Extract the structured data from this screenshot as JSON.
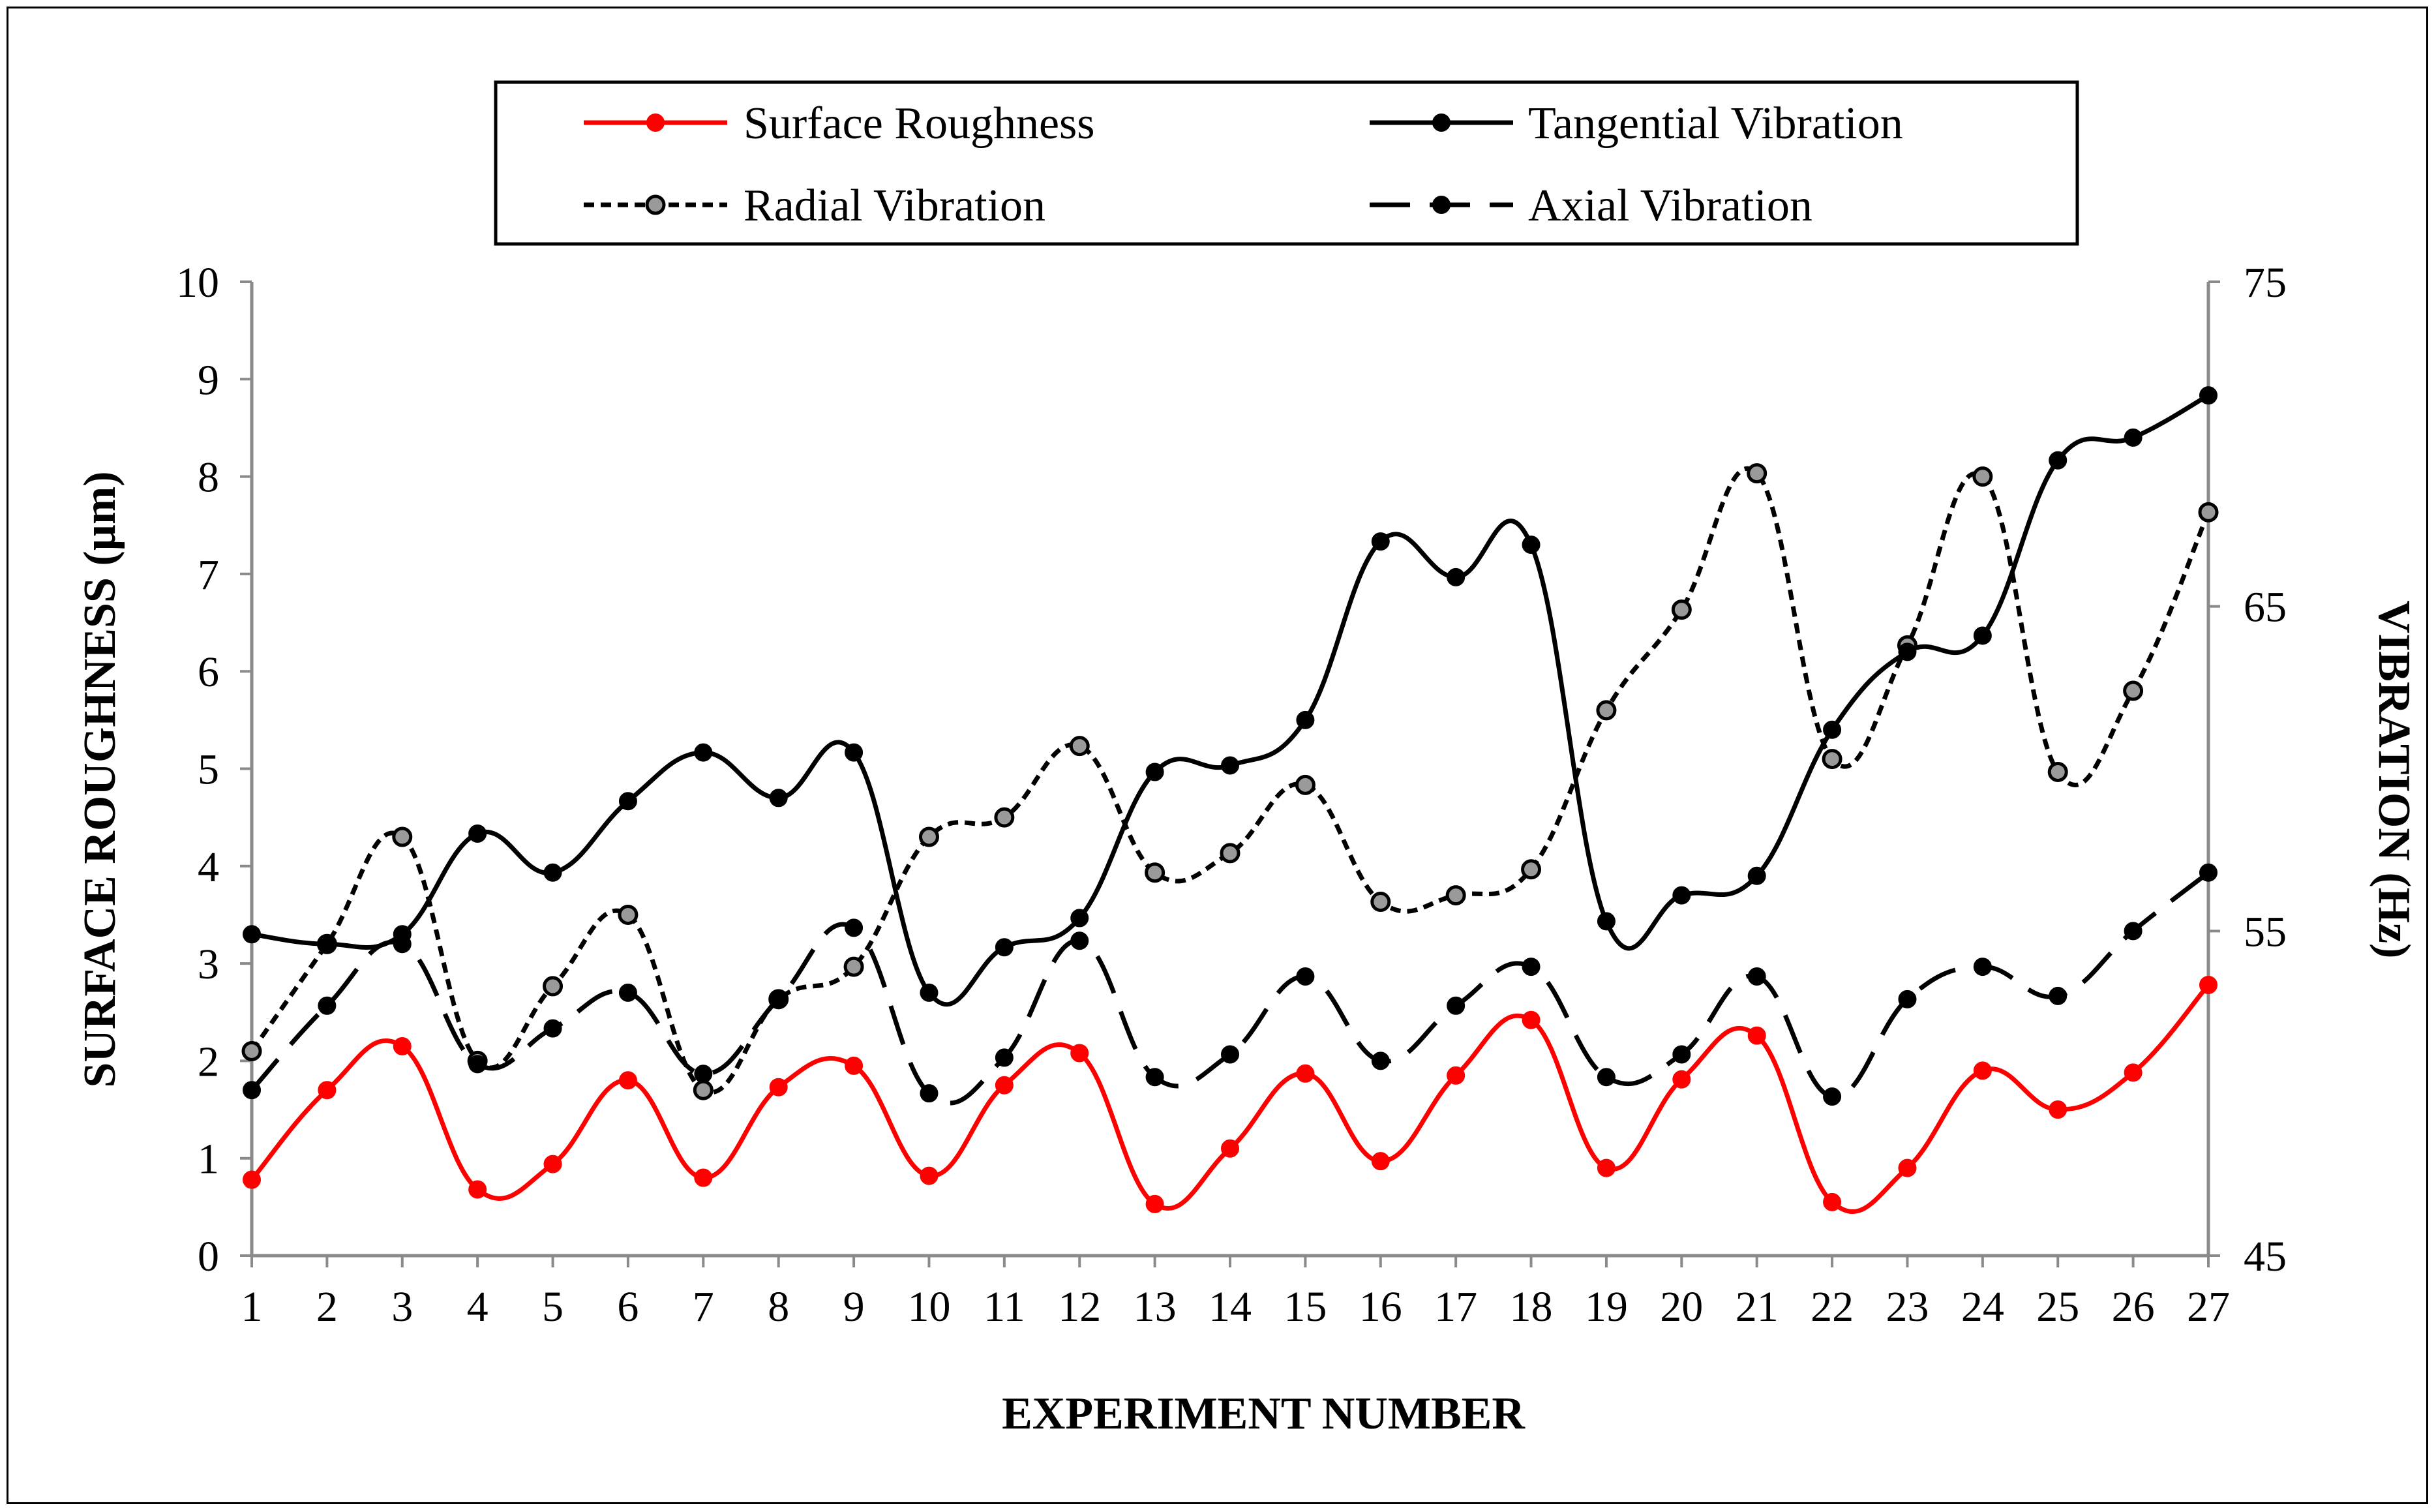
{
  "chart_data": {
    "type": "line",
    "title": "",
    "xlabel": "EXPERIMENT NUMBER",
    "ylabel": "SURFACE ROUGHNESS (µm)",
    "y2label": "VIBRATION (Hz)",
    "x": [
      1,
      2,
      3,
      4,
      5,
      6,
      7,
      8,
      9,
      10,
      11,
      12,
      13,
      14,
      15,
      16,
      17,
      18,
      19,
      20,
      21,
      22,
      23,
      24,
      25,
      26,
      27
    ],
    "xlim": [
      1,
      27
    ],
    "ylim": [
      0,
      10
    ],
    "y2lim": [
      45,
      75
    ],
    "yticks": [
      0,
      1,
      2,
      3,
      4,
      5,
      6,
      7,
      8,
      9,
      10
    ],
    "y2ticks": [
      45,
      55,
      65,
      75
    ],
    "legend_position": "top-center",
    "grid": false,
    "series": [
      {
        "name": "Surface Roughness",
        "axis": "left",
        "style": "solid",
        "color": "#ff0000",
        "marker_fill": "#ff0000",
        "values": [
          0.78,
          1.7,
          2.15,
          0.68,
          0.94,
          1.8,
          0.8,
          1.73,
          1.95,
          0.82,
          1.75,
          2.08,
          0.53,
          1.1,
          1.87,
          0.97,
          1.85,
          2.42,
          0.9,
          1.81,
          2.26,
          0.55,
          0.9,
          1.9,
          1.5,
          1.88,
          2.78
        ]
      },
      {
        "name": "Tangential Vibration",
        "axis": "right",
        "style": "solid",
        "color": "#000000",
        "marker_fill": "#000000",
        "values": [
          54.9,
          54.6,
          54.9,
          58.0,
          56.8,
          59.0,
          60.5,
          59.1,
          60.5,
          53.1,
          54.5,
          55.4,
          59.9,
          60.1,
          61.5,
          67.0,
          65.9,
          66.9,
          55.3,
          56.1,
          56.7,
          61.2,
          63.6,
          64.1,
          69.5,
          70.2,
          71.5
        ]
      },
      {
        "name": "Radial Vibration",
        "axis": "right",
        "style": "dotted",
        "color": "#000000",
        "marker_fill": "#9a9a9a",
        "values": [
          51.3,
          54.6,
          57.9,
          51.0,
          53.3,
          55.5,
          50.1,
          52.9,
          53.9,
          57.9,
          58.5,
          60.7,
          56.8,
          57.4,
          59.5,
          55.9,
          56.1,
          56.9,
          61.8,
          64.9,
          69.1,
          60.3,
          63.8,
          69.0,
          59.9,
          62.4,
          67.9
        ]
      },
      {
        "name": "Axial Vibration",
        "axis": "right",
        "style": "dashed",
        "color": "#000000",
        "marker_fill": "#000000",
        "values": [
          50.1,
          52.7,
          54.6,
          50.9,
          52.0,
          53.1,
          50.6,
          52.9,
          55.1,
          50.0,
          51.1,
          54.7,
          50.5,
          51.2,
          53.6,
          51.0,
          52.7,
          53.9,
          50.5,
          51.2,
          53.6,
          49.9,
          52.9,
          53.9,
          53.0,
          55.0,
          56.8
        ]
      }
    ]
  }
}
